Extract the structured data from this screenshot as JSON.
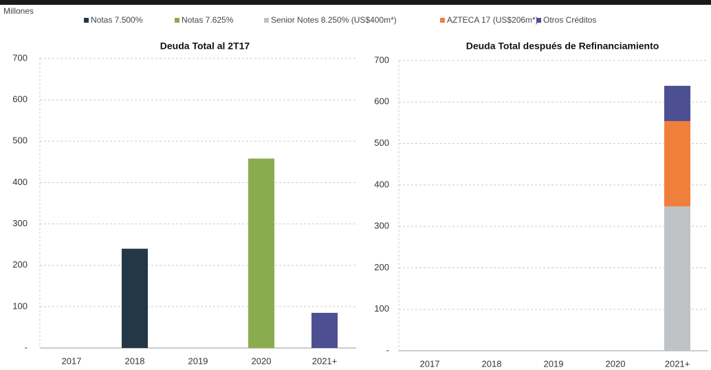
{
  "units": "Millones",
  "chart_data": [
    {
      "type": "bar",
      "title": "Deuda Total al 2T17",
      "categories": [
        "2017",
        "2018",
        "2019",
        "2020",
        "2021+"
      ],
      "series": [
        {
          "name": "Notas 7.500%",
          "color": "#243746",
          "values": [
            null,
            240,
            null,
            null,
            null
          ]
        },
        {
          "name": "Notas 7.625%",
          "color": "#8aac4f",
          "values": [
            null,
            null,
            null,
            458,
            null
          ]
        },
        {
          "name": "Senior Notes 8.250% (US$400m*)",
          "color": "#bfc3c6",
          "values": [
            null,
            null,
            null,
            null,
            null
          ]
        },
        {
          "name": "AZTECA 17 (US$206m*)",
          "color": "#f07f3c",
          "values": [
            null,
            null,
            null,
            null,
            null
          ]
        },
        {
          "name": "Otros Créditos",
          "color": "#4c4f91",
          "values": [
            null,
            null,
            null,
            null,
            85
          ]
        }
      ],
      "ylim": [
        0,
        700
      ],
      "yticks": [
        {
          "value": 0,
          "label": "-"
        },
        100,
        200,
        300,
        400,
        500,
        600,
        700
      ],
      "grid": true
    },
    {
      "type": "stacked_bar",
      "title": "Deuda Total después de Refinanciamiento",
      "categories": [
        "2017",
        "2018",
        "2019",
        "2020",
        "2021+"
      ],
      "series": [
        {
          "color": "#243746",
          "values": [
            null,
            null,
            null,
            null,
            null
          ]
        },
        {
          "color": "#8aac4f",
          "values": [
            null,
            null,
            null,
            null,
            null
          ]
        },
        {
          "color": "#bfc3c6",
          "values": [
            null,
            null,
            null,
            null,
            348
          ]
        },
        {
          "color": "#f07f3c",
          "values": [
            null,
            null,
            null,
            null,
            206
          ]
        },
        {
          "color": "#4c4f91",
          "values": [
            null,
            null,
            null,
            null,
            85
          ]
        }
      ],
      "ylim": [
        0,
        700
      ],
      "yticks": [
        {
          "value": 0,
          "label": "-"
        },
        100,
        200,
        300,
        400,
        500,
        600,
        700
      ],
      "grid": true
    }
  ]
}
